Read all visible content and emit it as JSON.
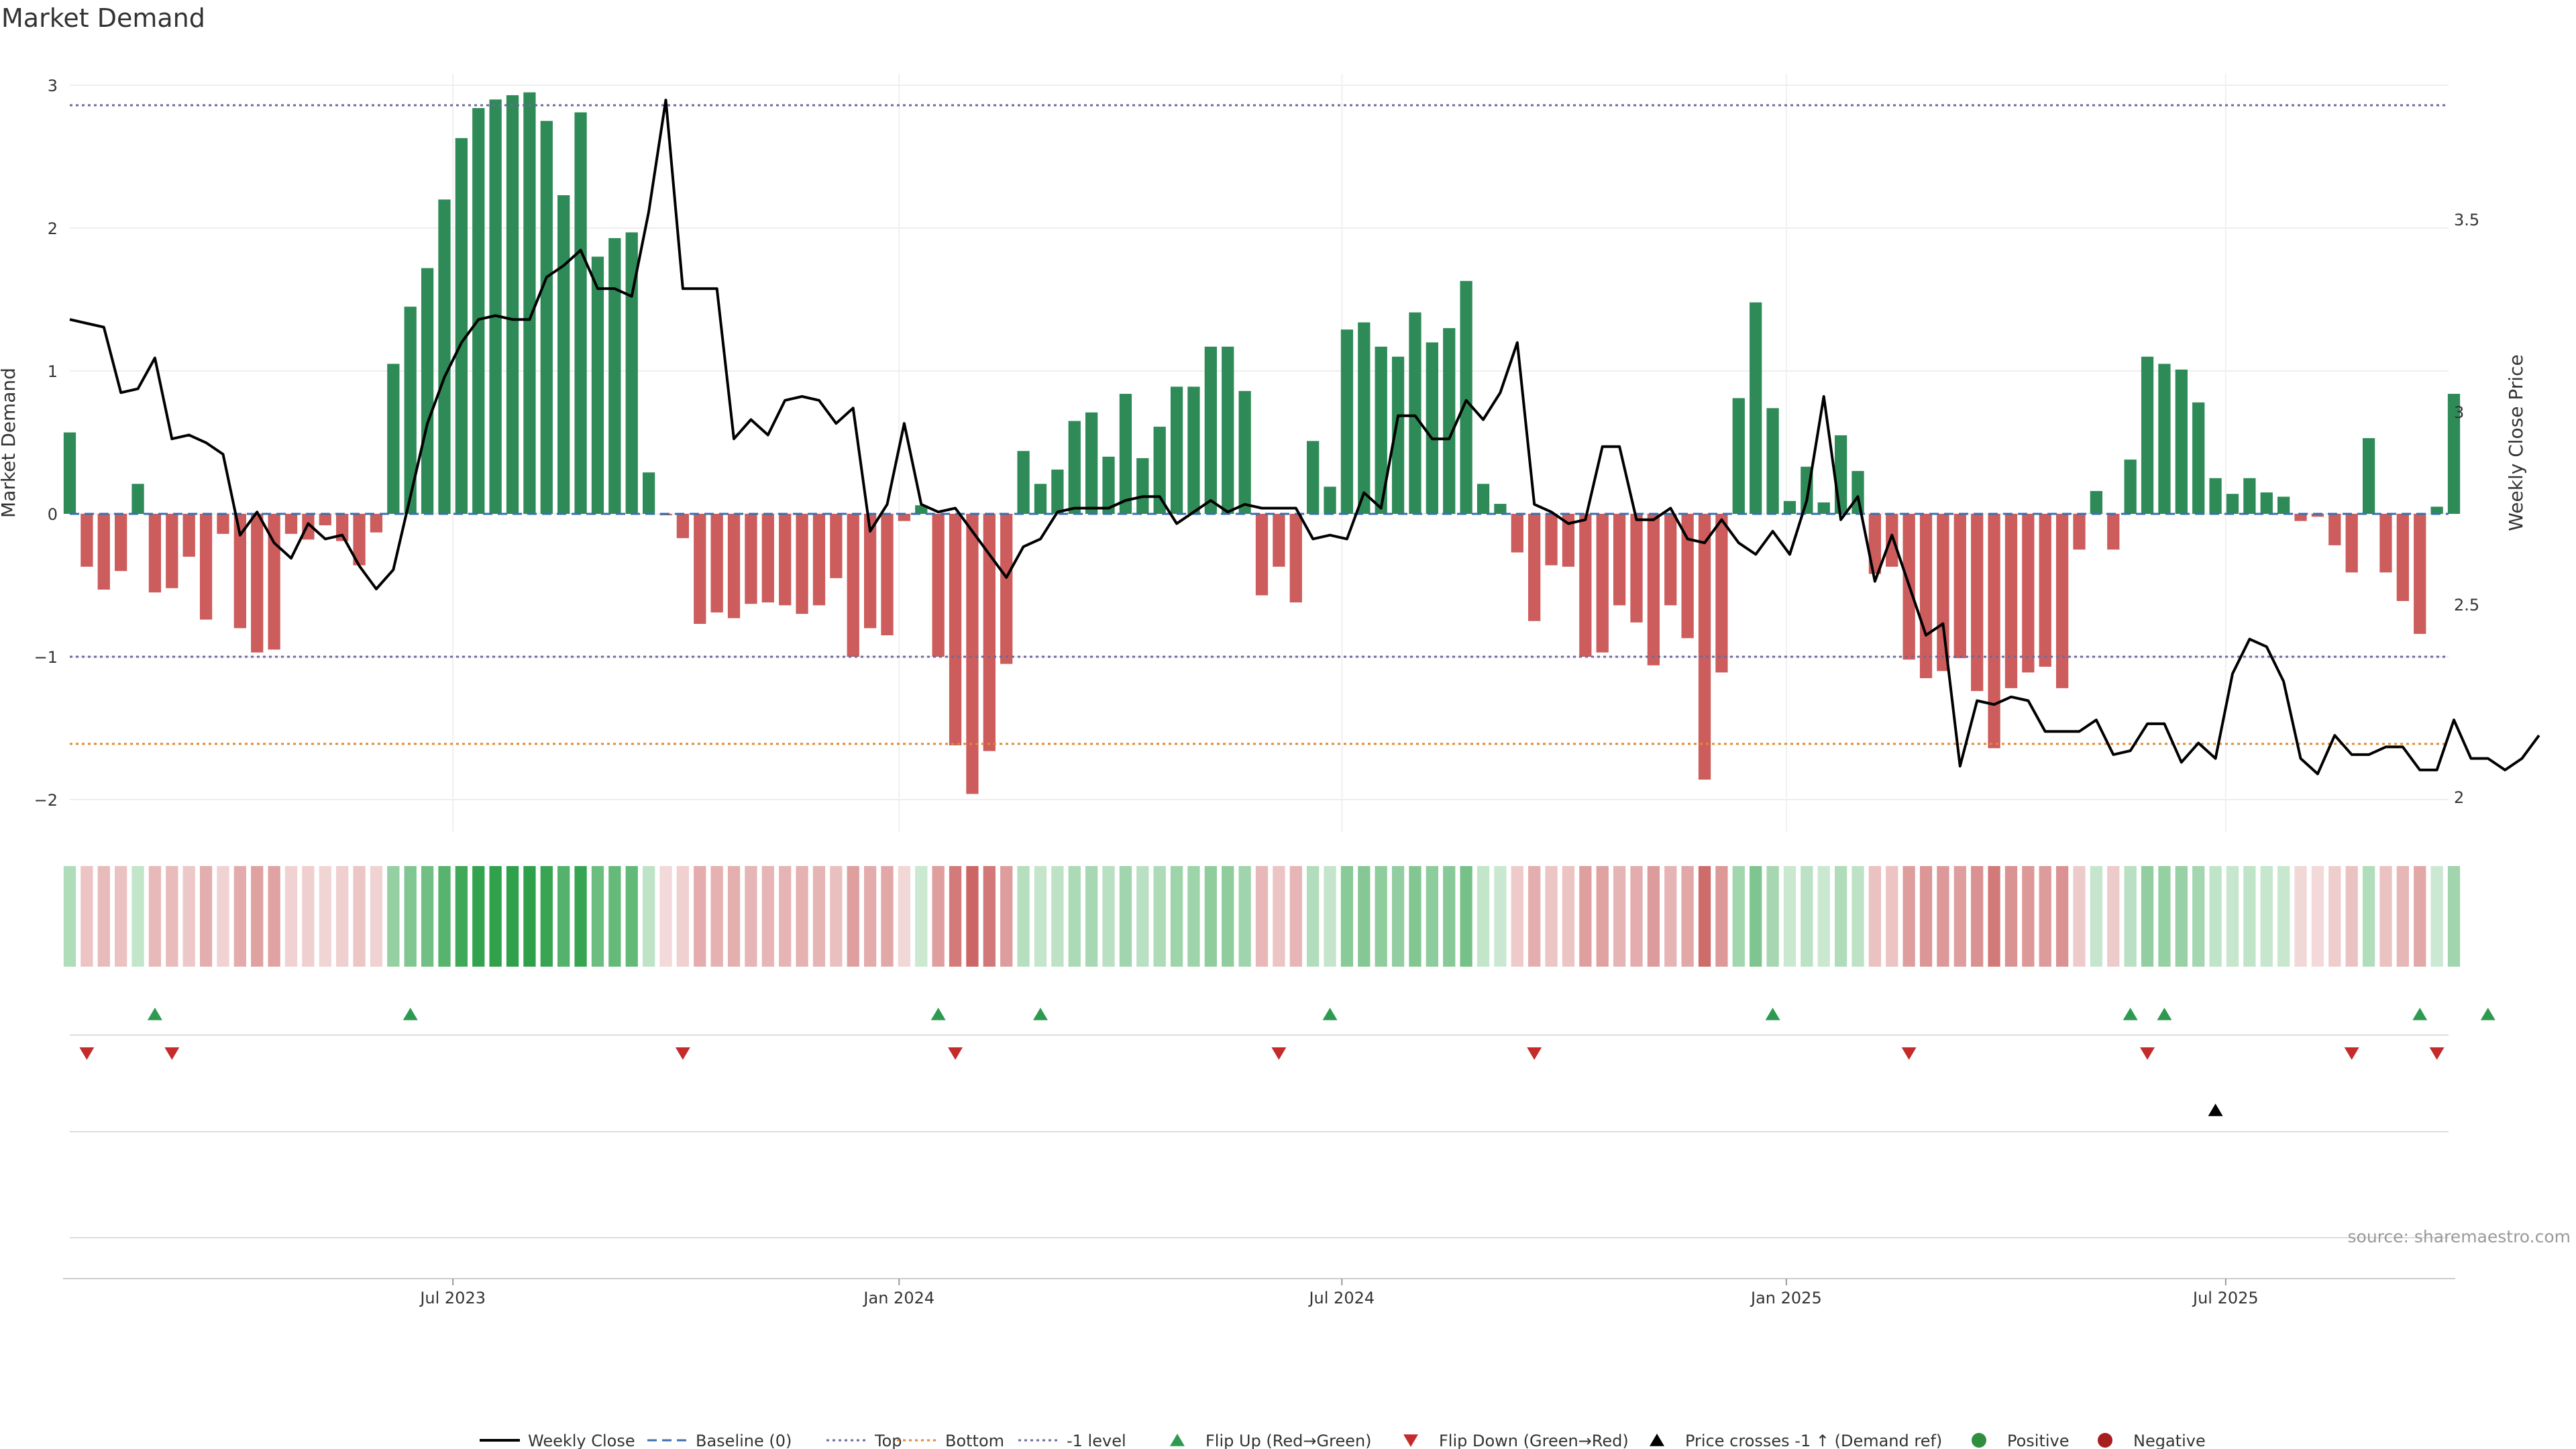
{
  "chart_data": {
    "type": "bar",
    "title": "Market Demand",
    "ylabel": "Market Demand",
    "y2label": "Weekly Close Price",
    "ylim": [
      -2.2,
      3.1
    ],
    "y2lim": [
      1.95,
      3.95
    ],
    "yticks": [
      "−2",
      "−1",
      "0",
      "1",
      "2",
      "3"
    ],
    "ytick_values": [
      -2,
      -1,
      0,
      1,
      2,
      3
    ],
    "y2ticks": [
      "2",
      "2.5",
      "3",
      "3.5"
    ],
    "y2tick_values": [
      2,
      2.5,
      3,
      3.5
    ],
    "xticks": [
      "Jul 2023",
      "Jan 2024",
      "Jul 2024",
      "Jan 2025",
      "Jul 2025"
    ],
    "xtick_positions": [
      22.5,
      48.7,
      74.7,
      100.8,
      126.6
    ],
    "reference_lines": {
      "top": 2.86,
      "bottom": -1.61,
      "minus_one": -1.0,
      "baseline": 0
    },
    "demand": [
      0.57,
      -0.37,
      -0.53,
      -0.4,
      0.21,
      -0.55,
      -0.52,
      -0.3,
      -0.74,
      -0.14,
      -0.8,
      -0.97,
      -0.95,
      -0.14,
      -0.18,
      -0.08,
      -0.19,
      -0.36,
      -0.13,
      1.05,
      1.45,
      1.72,
      2.2,
      2.63,
      2.84,
      2.9,
      2.93,
      2.95,
      2.75,
      2.23,
      2.81,
      1.8,
      1.93,
      1.97,
      0.29,
      -0.01,
      -0.17,
      -0.77,
      -0.69,
      -0.73,
      -0.63,
      -0.62,
      -0.64,
      -0.7,
      -0.64,
      -0.45,
      -1.0,
      -0.8,
      -0.85,
      -0.05,
      0.06,
      -1.0,
      -1.62,
      -1.96,
      -1.66,
      -1.05,
      0.44,
      0.21,
      0.31,
      0.65,
      0.71,
      0.4,
      0.84,
      0.39,
      0.61,
      0.89,
      0.89,
      1.17,
      1.17,
      0.86,
      -0.57,
      -0.37,
      -0.62,
      0.51,
      0.19,
      1.29,
      1.34,
      1.17,
      1.1,
      1.41,
      1.2,
      1.3,
      1.63,
      0.21,
      0.07,
      -0.27,
      -0.75,
      -0.36,
      -0.37,
      -1.0,
      -0.97,
      -0.64,
      -0.76,
      -1.06,
      -0.64,
      -0.87,
      -1.86,
      -1.11,
      0.81,
      1.48,
      0.74,
      0.09,
      0.33,
      0.08,
      0.55,
      0.3,
      -0.42,
      -0.37,
      -1.02,
      -1.15,
      -1.1,
      -1.01,
      -1.24,
      -1.64,
      -1.22,
      -1.11,
      -1.07,
      -1.22,
      -0.25,
      0.16,
      -0.25,
      0.38,
      1.1,
      1.05,
      1.01,
      0.78,
      0.25,
      0.14,
      0.25,
      0.15,
      0.12,
      -0.05,
      -0.02,
      -0.22,
      -0.41,
      0.53,
      -0.41,
      -0.61,
      -0.84,
      0.05,
      0.84
    ],
    "weekly_close": [
      3.24,
      3.23,
      3.22,
      3.05,
      3.06,
      3.14,
      2.93,
      2.94,
      2.92,
      2.89,
      2.68,
      2.74,
      2.66,
      2.62,
      2.71,
      2.67,
      2.68,
      2.6,
      2.54,
      2.59,
      2.78,
      2.97,
      3.09,
      3.18,
      3.24,
      3.25,
      3.24,
      3.24,
      3.35,
      3.38,
      3.42,
      3.32,
      3.32,
      3.3,
      3.52,
      3.81,
      3.32,
      3.32,
      3.32,
      2.93,
      2.98,
      2.94,
      3.03,
      3.04,
      3.03,
      2.97,
      3.01,
      2.69,
      2.76,
      2.97,
      2.76,
      2.74,
      2.75,
      2.69,
      2.63,
      2.57,
      2.65,
      2.67,
      2.74,
      2.75,
      2.75,
      2.75,
      2.77,
      2.78,
      2.78,
      2.71,
      2.74,
      2.77,
      2.74,
      2.76,
      2.75,
      2.75,
      2.75,
      2.67,
      2.68,
      2.67,
      2.79,
      2.75,
      2.99,
      2.99,
      2.93,
      2.93,
      3.03,
      2.98,
      3.05,
      3.18,
      2.76,
      2.74,
      2.71,
      2.72,
      2.91,
      2.91,
      2.72,
      2.72,
      2.75,
      2.67,
      2.66,
      2.72,
      2.66,
      2.63,
      2.69,
      2.63,
      2.77,
      3.04,
      2.72,
      2.78,
      2.56,
      2.68,
      2.55,
      2.42,
      2.45,
      2.08,
      2.25,
      2.24,
      2.26,
      2.25,
      2.17,
      2.17,
      2.17,
      2.2,
      2.11,
      2.12,
      2.19,
      2.19,
      2.09,
      2.14,
      2.1,
      2.32,
      2.41,
      2.39,
      2.3,
      2.1,
      2.06,
      2.16,
      2.11,
      2.11,
      2.13,
      2.13,
      2.07,
      2.07,
      2.2,
      2.1,
      2.1,
      2.07,
      2.1,
      2.16
    ],
    "flip_up": [
      5,
      20,
      51,
      57,
      74,
      100,
      121,
      123,
      138,
      142
    ],
    "flip_down": [
      1,
      6,
      36,
      52,
      71,
      86,
      108,
      122,
      134,
      139
    ],
    "price_cross_up": [
      126
    ],
    "legend": [
      {
        "label": "Weekly Close",
        "marker": "solid-line",
        "color": "#000000"
      },
      {
        "label": "Baseline (0)",
        "marker": "dash-line",
        "color": "#3a6fb0"
      },
      {
        "label": "Top",
        "marker": "dot-line",
        "color": "#6a6a9e"
      },
      {
        "label": "Bottom",
        "marker": "dot-line",
        "color": "#e08a33"
      },
      {
        "label": "-1 level",
        "marker": "dot-line",
        "color": "#6a6a9e"
      },
      {
        "label": "Flip Up (Red→Green)",
        "marker": "triangle-up",
        "color": "#2e9a4f"
      },
      {
        "label": "Flip Down (Green→Red)",
        "marker": "triangle-down",
        "color": "#c42b2b"
      },
      {
        "label": "Price crosses -1 ↑ (Demand ref)",
        "marker": "triangle-up",
        "color": "#000000"
      },
      {
        "label": "Positive",
        "marker": "circle",
        "color": "#2f8f3f"
      },
      {
        "label": "Negative",
        "marker": "circle",
        "color": "#a81e1e"
      }
    ],
    "source": "source: sharemaestro.com"
  },
  "colors": {
    "positive_bar": "#2e8b57",
    "negative_bar": "#cd5c5c",
    "price_line": "#000000",
    "top_line": "#6a6a9e",
    "bottom_line": "#e08a33",
    "baseline": "#3a6fb0"
  }
}
